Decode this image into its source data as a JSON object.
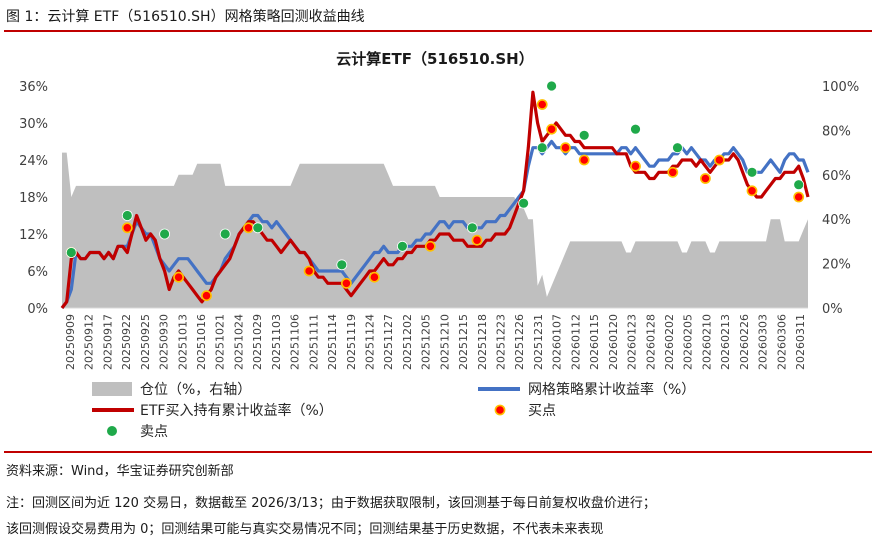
{
  "figure_title": "图 1：云计算 ETF（516510.SH）网格策略回测收益曲线",
  "notes": {
    "source": "资料来源：Wind，华宝证券研究创新部",
    "note1": "注：回测区间为近 120 交易日，数据截至 2026/3/13；由于数据获取限制，该回测基于每日前复权收盘价进行；",
    "note2": "该回测假设交易费用为 0；回测结果可能与真实交易情况不同；回测结果基于历史数据，不代表未来表现"
  },
  "colors": {
    "accent_red": "#c00000",
    "position_area": "#bfbfbf",
    "grid_strategy": "#4472c4",
    "etf_hold": "#c00000",
    "buy_point": "#ff0000",
    "buy_point_center": "#ffc000",
    "sell_point": "#1fa94a"
  },
  "chart_data": {
    "type": "line",
    "title": "云计算ETF（516510.SH）",
    "x_tick_labels": [
      "20250909",
      "20250912",
      "20250917",
      "20250922",
      "20250925",
      "20250930",
      "20251013",
      "20251016",
      "20251021",
      "20251024",
      "20251029",
      "20251103",
      "20251106",
      "20251111",
      "20251114",
      "20251119",
      "20251124",
      "20251127",
      "20251202",
      "20251205",
      "20251210",
      "20251215",
      "20251218",
      "20251223",
      "20251226",
      "20251231",
      "20260107",
      "20260112",
      "20260115",
      "20260120",
      "20260123",
      "20260128",
      "20260202",
      "20260205",
      "20260210",
      "20260213",
      "20260226",
      "20260303",
      "20260306",
      "20260311"
    ],
    "y_left": {
      "ticks": [
        "0%",
        "6%",
        "12%",
        "18%",
        "24%",
        "30%",
        "36%"
      ],
      "range": [
        0,
        36
      ]
    },
    "y_right": {
      "ticks": [
        "0%",
        "20%",
        "40%",
        "60%",
        "80%",
        "100%"
      ],
      "range": [
        0,
        100
      ]
    },
    "legend_placement": "bottom",
    "series": [
      {
        "name": "仓位（%，右轴）",
        "type": "area",
        "axis": "right",
        "values": [
          70,
          70,
          50,
          55,
          55,
          55,
          55,
          55,
          55,
          55,
          55,
          55,
          55,
          55,
          55,
          55,
          55,
          55,
          55,
          55,
          55,
          55,
          55,
          55,
          55,
          60,
          60,
          60,
          60,
          65,
          65,
          65,
          65,
          65,
          65,
          55,
          55,
          55,
          55,
          55,
          55,
          55,
          55,
          55,
          55,
          55,
          55,
          55,
          55,
          55,
          60,
          65,
          65,
          65,
          65,
          65,
          65,
          65,
          65,
          65,
          65,
          65,
          65,
          65,
          65,
          65,
          65,
          65,
          65,
          65,
          60,
          55,
          55,
          55,
          55,
          55,
          55,
          55,
          55,
          55,
          55,
          50,
          50,
          50,
          50,
          50,
          50,
          50,
          50,
          50,
          50,
          50,
          50,
          50,
          50,
          50,
          50,
          50,
          45,
          45,
          40,
          40,
          10,
          15,
          5,
          10,
          15,
          20,
          25,
          30,
          30,
          30,
          30,
          30,
          30,
          30,
          30,
          30,
          30,
          30,
          30,
          25,
          25,
          30,
          30,
          30,
          30,
          30,
          30,
          30,
          30,
          30,
          30,
          25,
          25,
          30,
          30,
          30,
          30,
          25,
          25,
          30,
          30,
          30,
          30,
          30,
          30,
          30,
          30,
          30,
          30,
          30,
          40,
          40,
          40,
          30,
          30,
          30,
          30,
          35,
          40
        ]
      },
      {
        "name": "网格策略累计收益率（%）",
        "type": "line",
        "axis": "left",
        "values": [
          0,
          1,
          3,
          9,
          8,
          8,
          9,
          9,
          9,
          8,
          9,
          8,
          10,
          10,
          10,
          12,
          14,
          13,
          12,
          12,
          10,
          8,
          7,
          6,
          7,
          8,
          8,
          8,
          7,
          6,
          5,
          4,
          4,
          5,
          6,
          8,
          9,
          10,
          12,
          13,
          14,
          15,
          15,
          14,
          14,
          13,
          14,
          13,
          12,
          11,
          10,
          9,
          9,
          8,
          7,
          6,
          6,
          6,
          6,
          6,
          6,
          5,
          4,
          5,
          6,
          7,
          8,
          9,
          9,
          10,
          9,
          9,
          9,
          10,
          10,
          10,
          11,
          11,
          12,
          12,
          13,
          14,
          14,
          13,
          14,
          14,
          14,
          13,
          13,
          13,
          13,
          14,
          14,
          14,
          15,
          15,
          16,
          17,
          18,
          19,
          23,
          26,
          26,
          25,
          26,
          27,
          26,
          26,
          25,
          26,
          26,
          25,
          25,
          25,
          25,
          25,
          25,
          25,
          25,
          25,
          26,
          26,
          25,
          26,
          25,
          24,
          23,
          23,
          24,
          24,
          24,
          25,
          25,
          26,
          25,
          26,
          25,
          24,
          24,
          23,
          24,
          24,
          25,
          25,
          26,
          25,
          24,
          22,
          22,
          22,
          22,
          23,
          24,
          23,
          22,
          24,
          25,
          25,
          24,
          24,
          22
        ]
      },
      {
        "name": "ETF买入持有累计收益率（%）",
        "type": "line",
        "axis": "left",
        "values": [
          0,
          1,
          8,
          9,
          8,
          8,
          9,
          9,
          9,
          8,
          9,
          8,
          10,
          10,
          9,
          12,
          15,
          13,
          11,
          12,
          11,
          8,
          6,
          3,
          5,
          6,
          5,
          4,
          3,
          2,
          1,
          2,
          3,
          5,
          6,
          7,
          8,
          10,
          12,
          13,
          14,
          14,
          13,
          12,
          11,
          11,
          10,
          9,
          10,
          11,
          10,
          9,
          9,
          8,
          6,
          5,
          5,
          4,
          4,
          4,
          4,
          3,
          2,
          3,
          4,
          5,
          6,
          6,
          7,
          8,
          7,
          7,
          8,
          8,
          9,
          9,
          10,
          10,
          10,
          11,
          11,
          12,
          12,
          12,
          11,
          11,
          11,
          10,
          10,
          10,
          10,
          11,
          11,
          12,
          12,
          12,
          13,
          15,
          17,
          19,
          26,
          35,
          30,
          27,
          28,
          29,
          30,
          29,
          28,
          28,
          27,
          27,
          26,
          26,
          26,
          26,
          26,
          26,
          26,
          25,
          25,
          25,
          23,
          22,
          22,
          22,
          21,
          21,
          22,
          22,
          22,
          23,
          23,
          24,
          24,
          24,
          23,
          24,
          23,
          22,
          23,
          24,
          24,
          24,
          25,
          24,
          22,
          20,
          19,
          18,
          18,
          19,
          20,
          21,
          21,
          22,
          22,
          22,
          23,
          21,
          18
        ]
      },
      {
        "name": "买点",
        "type": "scatter",
        "axis": "left",
        "points": [
          [
            2,
            9
          ],
          [
            14,
            13
          ],
          [
            25,
            5
          ],
          [
            31,
            2
          ],
          [
            40,
            13
          ],
          [
            53,
            6
          ],
          [
            61,
            4
          ],
          [
            67,
            5
          ],
          [
            79,
            10
          ],
          [
            89,
            11
          ],
          [
            103,
            33
          ],
          [
            105,
            29
          ],
          [
            108,
            26
          ],
          [
            112,
            24
          ],
          [
            123,
            23
          ],
          [
            131,
            22
          ],
          [
            138,
            21
          ],
          [
            141,
            24
          ],
          [
            148,
            19
          ],
          [
            158,
            18
          ]
        ]
      },
      {
        "name": "卖点",
        "type": "scatter",
        "axis": "left",
        "points": [
          [
            2,
            9
          ],
          [
            14,
            15
          ],
          [
            22,
            12
          ],
          [
            35,
            12
          ],
          [
            42,
            13
          ],
          [
            60,
            7
          ],
          [
            73,
            10
          ],
          [
            88,
            13
          ],
          [
            99,
            17
          ],
          [
            103,
            26
          ],
          [
            105,
            36
          ],
          [
            112,
            28
          ],
          [
            123,
            29
          ],
          [
            132,
            26
          ],
          [
            148,
            22
          ],
          [
            158,
            20
          ]
        ]
      }
    ]
  }
}
